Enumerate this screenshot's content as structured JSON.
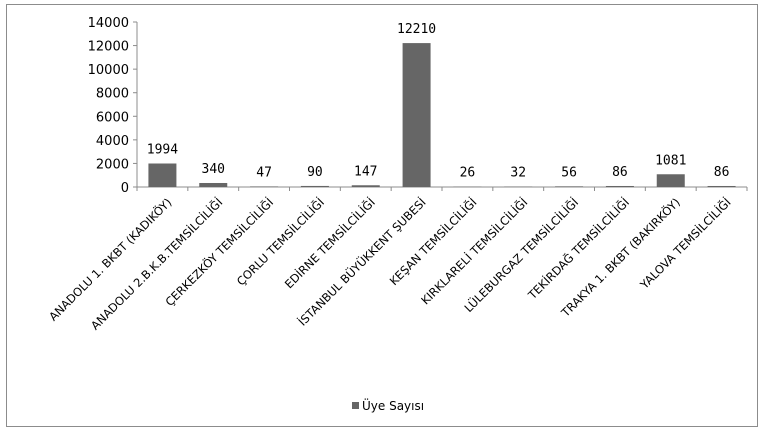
{
  "chart_data": {
    "type": "bar",
    "title": "",
    "xlabel": "",
    "ylabel": "",
    "ylim": [
      0,
      14000
    ],
    "yticks": [
      0,
      2000,
      4000,
      6000,
      8000,
      10000,
      12000,
      14000
    ],
    "categories": [
      "ANADOLU 1. BKBT (KADIKÖY)",
      "ANADOLU 2.B.K.B.TEMSİLCİLİĞİ",
      "ÇERKEZKÖY TEMSİLCİLİĞİ",
      "ÇORLU TEMSİLCİLİĞİ",
      "EDİRNE TEMSİLCİLİĞİ",
      "İSTANBUL BÜYÜKKENT ŞUBESİ",
      "KEŞAN TEMSİLCİLİĞİ",
      "KIRKLARELİ TEMSİLCİLİĞİ",
      "LÜLEBURGAZ TEMSİLCİLİĞİ",
      "TEKİRDAĞ TEMSİLCİLİĞİ",
      "TRAKYA 1. BKBT (BAKIRKÖY)",
      "YALOVA TEMSİLCİLİĞİ"
    ],
    "series": [
      {
        "name": "Üye Sayısı",
        "values": [
          1994,
          340,
          47,
          90,
          147,
          12210,
          26,
          32,
          56,
          86,
          1081,
          86
        ]
      }
    ],
    "grid": false,
    "legend_position": "bottom",
    "bar_color": "#666666"
  }
}
